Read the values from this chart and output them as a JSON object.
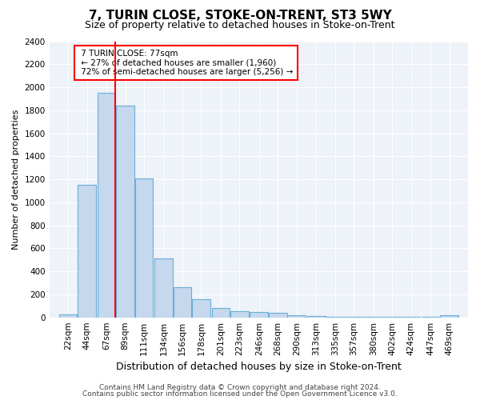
{
  "title": "7, TURIN CLOSE, STOKE-ON-TRENT, ST3 5WY",
  "subtitle": "Size of property relative to detached houses in Stoke-on-Trent",
  "xlabel": "Distribution of detached houses by size in Stoke-on-Trent",
  "ylabel": "Number of detached properties",
  "footer1": "Contains HM Land Registry data © Crown copyright and database right 2024.",
  "footer2": "Contains public sector information licensed under the Open Government Licence v3.0.",
  "bar_labels": [
    "22sqm",
    "44sqm",
    "67sqm",
    "89sqm",
    "111sqm",
    "134sqm",
    "156sqm",
    "178sqm",
    "201sqm",
    "223sqm",
    "246sqm",
    "268sqm",
    "290sqm",
    "313sqm",
    "335sqm",
    "357sqm",
    "380sqm",
    "402sqm",
    "424sqm",
    "447sqm",
    "469sqm"
  ],
  "bar_values": [
    25,
    1150,
    1950,
    1840,
    1210,
    510,
    265,
    155,
    82,
    55,
    45,
    38,
    18,
    14,
    8,
    5,
    4,
    3,
    2,
    2,
    20
  ],
  "bar_color": "#c5d8ee",
  "bar_edge_color": "#6aaed6",
  "ylim": [
    0,
    2400
  ],
  "yticks": [
    0,
    200,
    400,
    600,
    800,
    1000,
    1200,
    1400,
    1600,
    1800,
    2000,
    2200,
    2400
  ],
  "property_line_label": "7 TURIN CLOSE: 77sqm",
  "annotation_line1": "← 27% of detached houses are smaller (1,960)",
  "annotation_line2": "72% of semi-detached houses are larger (5,256) →",
  "background_color": "#eef2f9",
  "grid_color": "#ffffff",
  "title_fontsize": 11,
  "subtitle_fontsize": 9,
  "xlabel_fontsize": 9,
  "ylabel_fontsize": 8,
  "tick_fontsize": 7.5,
  "footer_fontsize": 6.5,
  "annot_fontsize": 7.5
}
